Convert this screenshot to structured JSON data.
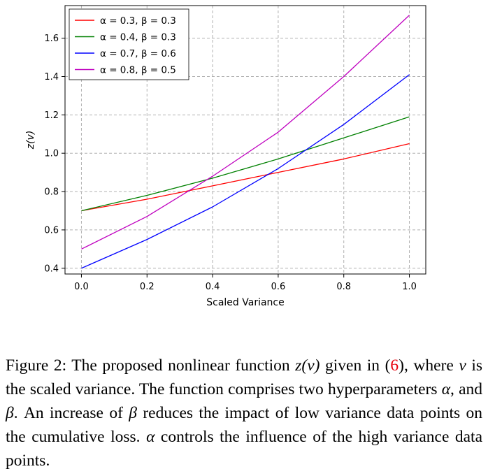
{
  "chart_data": {
    "type": "line",
    "title": "",
    "xlabel": "Scaled Variance",
    "ylabel": "z(v)",
    "xlim": [
      -0.05,
      1.05
    ],
    "ylim": [
      0.37,
      1.77
    ],
    "xticks": [
      0.0,
      0.2,
      0.4,
      0.6,
      0.8,
      1.0
    ],
    "xtick_labels": [
      "0.0",
      "0.2",
      "0.4",
      "0.6",
      "0.8",
      "1.0"
    ],
    "yticks": [
      0.4,
      0.6,
      0.8,
      1.0,
      1.2,
      1.4,
      1.6
    ],
    "ytick_labels": [
      "0.4",
      "0.6",
      "0.8",
      "1.0",
      "1.2",
      "1.4",
      "1.6"
    ],
    "grid": true,
    "legend_position": "top-left",
    "x": [
      0.0,
      0.2,
      0.4,
      0.6,
      0.8,
      1.0
    ],
    "series": [
      {
        "name": "α = 0.3, β = 0.3",
        "color": "#ff0000",
        "values": [
          0.7,
          0.76,
          0.83,
          0.9,
          0.97,
          1.05
        ]
      },
      {
        "name": "α = 0.4, β = 0.3",
        "color": "#008000",
        "values": [
          0.7,
          0.78,
          0.87,
          0.97,
          1.08,
          1.19
        ]
      },
      {
        "name": "α = 0.7, β = 0.6",
        "color": "#0000ff",
        "values": [
          0.4,
          0.55,
          0.72,
          0.92,
          1.15,
          1.41
        ]
      },
      {
        "name": "α = 0.8, β = 0.5",
        "color": "#bf00bf",
        "values": [
          0.5,
          0.67,
          0.88,
          1.11,
          1.4,
          1.72
        ]
      }
    ]
  },
  "caption": {
    "fig_label": "Figure 2:",
    "text_1": " The proposed nonlinear function ",
    "func": "z(v)",
    "text_2": " given in (",
    "eq_ref": "6",
    "text_3": "), where ",
    "var_v": "v",
    "text_4": " is the scaled variance. The function comprises two hyperparameters ",
    "alpha_1": "α",
    "text_5": ", and ",
    "beta_1": "β",
    "text_6": ". An increase of ",
    "beta_2": "β",
    "text_7": " reduces the impact of low variance data points on the cumulative loss. ",
    "alpha_2": "α",
    "text_8": " controls the influence of the high variance data points."
  }
}
